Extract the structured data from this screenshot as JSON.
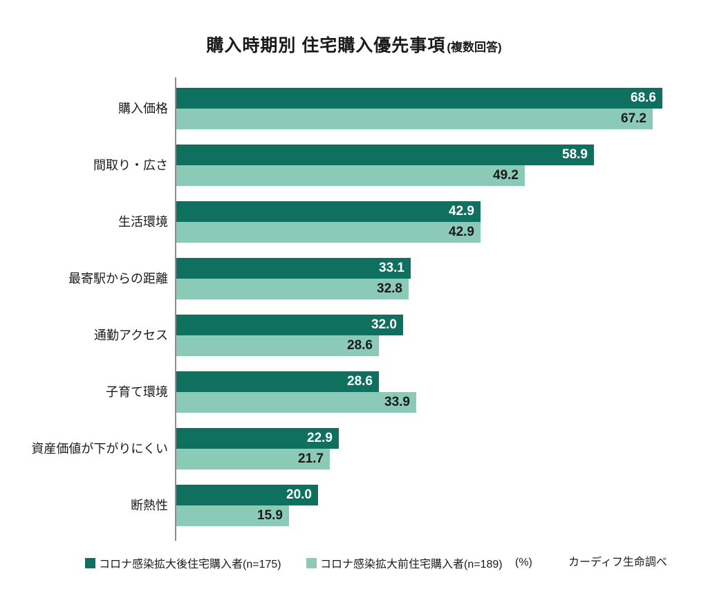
{
  "title": {
    "main": "購入時期別 住宅購入優先事項",
    "note": "(複数回答)"
  },
  "legend": {
    "after_label": "コロナ感染拡大後住宅購入者(n=175)",
    "before_label": "コロナ感染拡大前住宅購入者(n=189)",
    "unit_label": "(%)",
    "source_label": "カーディフ生命調べ"
  },
  "colors": {
    "after": "#10705F",
    "before": "#8CCAB8",
    "axis": "#8C8C8C",
    "value_on_dark": "#FFFFFF",
    "value_on_light": "#1A1A1A"
  },
  "chart_data": {
    "type": "bar",
    "orientation": "horizontal",
    "title": "購入時期別 住宅購入優先事項(複数回答)",
    "categories": [
      "購入価格",
      "間取り・広さ",
      "生活環境",
      "最寄駅からの距離",
      "通勤アクセス",
      "子育て環境",
      "資産価値が下がりにくい",
      "断熱性"
    ],
    "series": [
      {
        "name": "コロナ感染拡大後住宅購入者(n=175)",
        "color": "#10705F",
        "values": [
          68.6,
          58.9,
          42.9,
          33.1,
          32.0,
          28.6,
          22.9,
          20.0
        ],
        "value_labels": [
          "68.6",
          "58.9",
          "42.9",
          "33.1",
          "32.0",
          "28.6",
          "22.9",
          "20.0"
        ]
      },
      {
        "name": "コロナ感染拡大前住宅購入者(n=189)",
        "color": "#8CCAB8",
        "values": [
          67.2,
          49.2,
          42.9,
          32.8,
          28.6,
          33.9,
          21.7,
          15.9
        ],
        "value_labels": [
          "67.2",
          "49.2",
          "42.9",
          "32.8",
          "28.6",
          "33.9",
          "21.7",
          "15.9"
        ]
      }
    ],
    "unit": "%",
    "source": "カーディフ生命調べ",
    "xlim": [
      0,
      70
    ],
    "grid": false,
    "legend_position": "bottom",
    "value_labels_position": "inside-end"
  }
}
